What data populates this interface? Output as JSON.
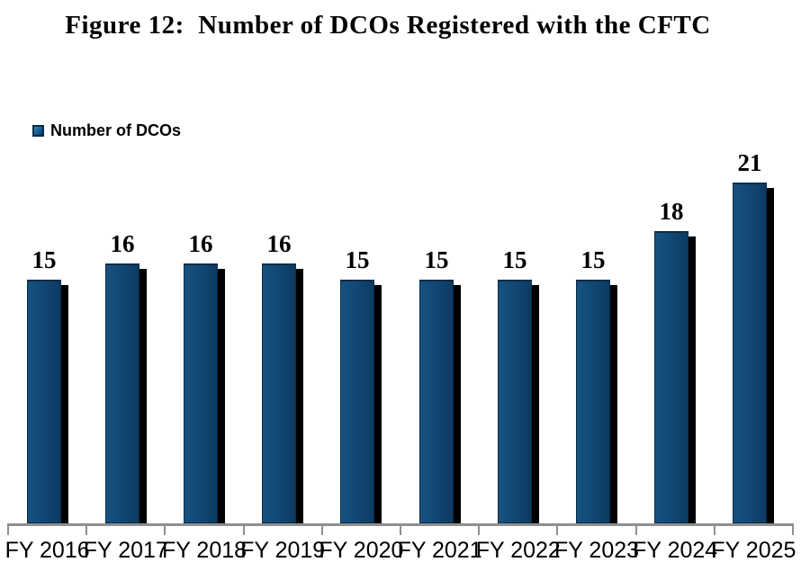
{
  "title": "Figure 12:  Number of DCOs Registered with the CFTC",
  "legend": {
    "label": "Number of DCOs"
  },
  "colors": {
    "bar_fill_start": "#17527f",
    "bar_fill_end": "#0d3a61",
    "bar_border": "#0a2b47",
    "bar_shadow": "#000000",
    "axis_line": "#8f8f8f",
    "text": "#000000"
  },
  "chart_data": {
    "type": "bar",
    "title": "Figure 12:  Number of DCOs Registered with the CFTC",
    "categories": [
      "FY 2016",
      "FY 2017",
      "FY 2018",
      "FY 2019",
      "FY 2020",
      "FY 2021",
      "FY 2022",
      "FY 2023",
      "FY 2024",
      "FY 2025"
    ],
    "series": [
      {
        "name": "Number of DCOs",
        "values": [
          15,
          16,
          16,
          16,
          15,
          15,
          15,
          15,
          18,
          21
        ]
      }
    ],
    "xlabel": "",
    "ylabel": "",
    "ylim": [
      0,
      22
    ],
    "grid": false,
    "y_axis_visible": false,
    "legend_position": "top-left",
    "data_labels": true,
    "bar_style": "3d-right-shadow"
  }
}
